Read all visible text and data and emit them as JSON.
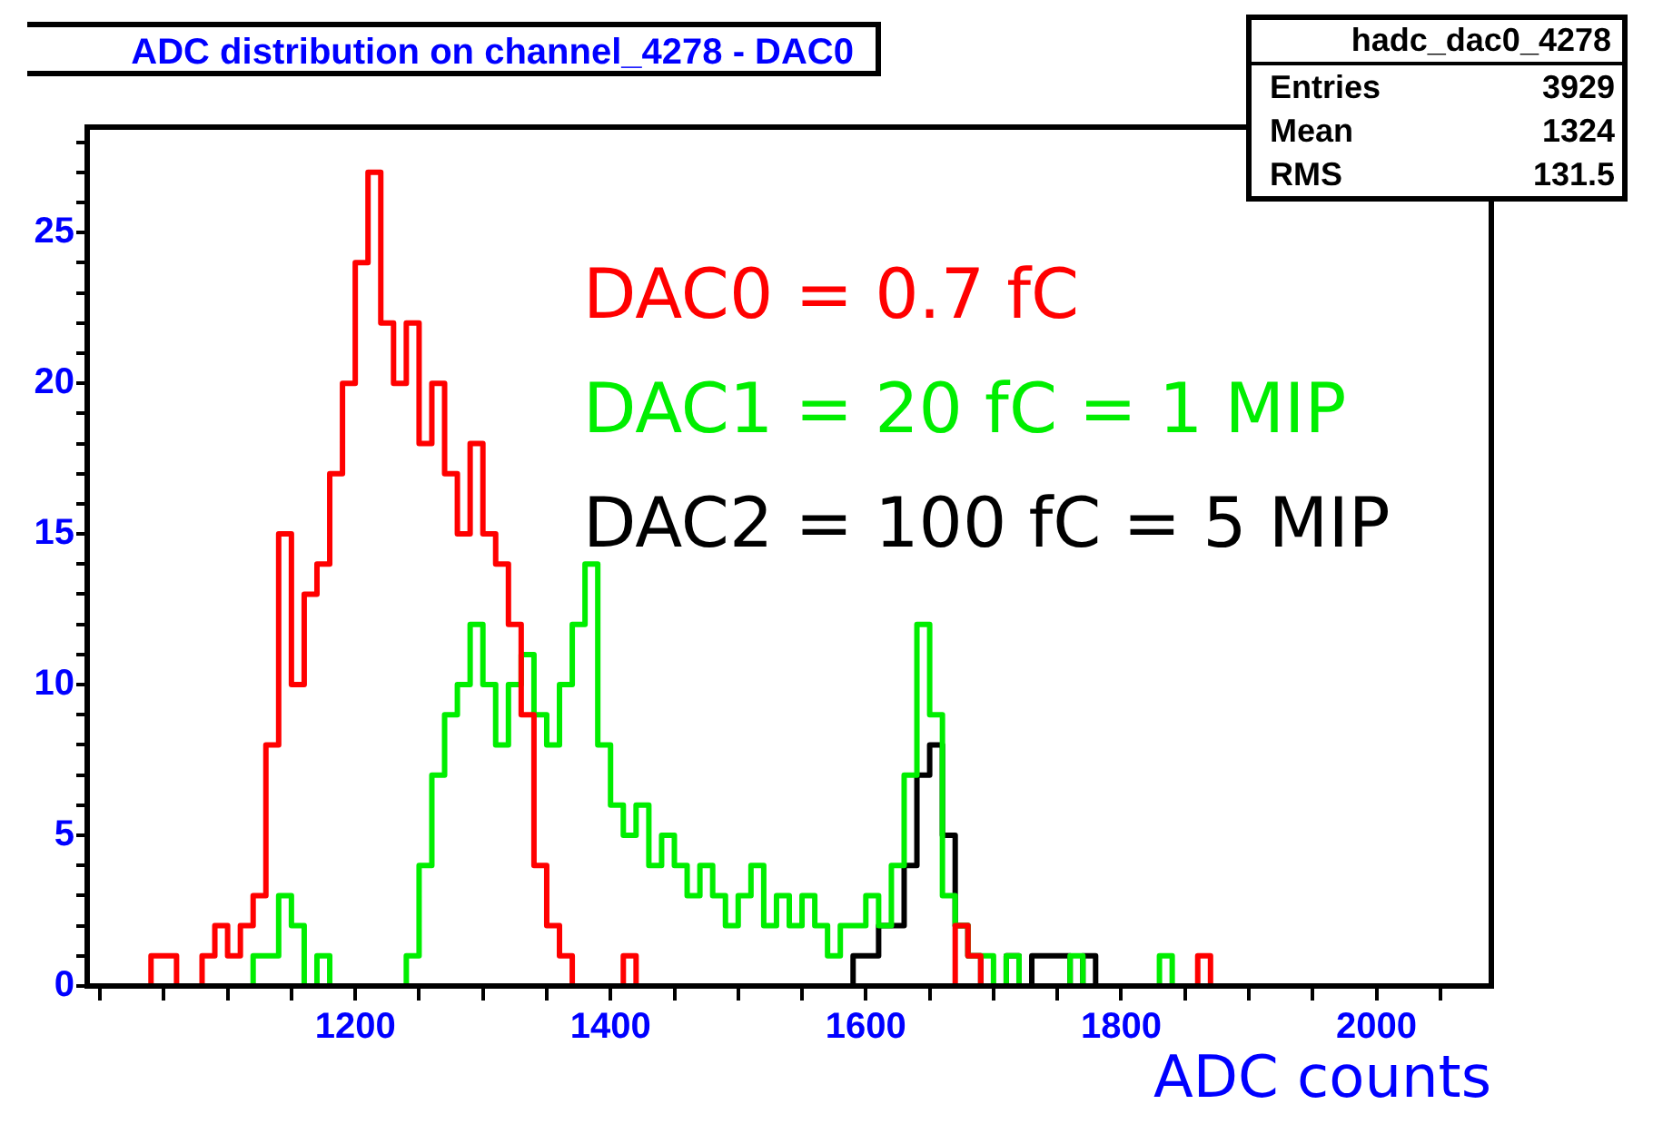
{
  "chart_data": {
    "type": "histogram",
    "title": "ADC distribution on channel_4278 - DAC0",
    "xlabel": "ADC counts",
    "annotations": [
      "hadc_dac0_4278",
      "Entries",
      "3929",
      "Mean",
      "1324",
      "RMS",
      "131.5"
    ],
    "bins": [
      1030,
      1040,
      1050,
      1060,
      1070,
      1080,
      1090,
      1100,
      1110,
      1120,
      1130,
      1140,
      1150,
      1160,
      1170,
      1180,
      1190,
      1200,
      1210,
      1220,
      1230,
      1240,
      1250,
      1260,
      1270,
      1280,
      1290,
      1300,
      1310,
      1320,
      1330,
      1340,
      1350,
      1360,
      1370,
      1380,
      1390,
      1400,
      1410,
      1420,
      1430,
      1440,
      1450,
      1460,
      1470,
      1480,
      1490,
      1500,
      1510,
      1520,
      1530,
      1540,
      1550,
      1560,
      1570,
      1580,
      1590,
      1600,
      1610,
      1620,
      1630,
      1640,
      1650,
      1660,
      1670,
      1680,
      1690,
      1700,
      1710,
      1720,
      1730,
      1740,
      1750,
      1760,
      1770,
      1780,
      1790,
      1800,
      1810,
      1820,
      1830,
      1840,
      1850,
      1860,
      1870,
      1880,
      1890,
      1900
    ],
    "series": [
      {
        "name": "DAC0 = 0.7 fC",
        "color": "#ff0000",
        "values": [
          0,
          1,
          1,
          0,
          0,
          1,
          2,
          1,
          2,
          3,
          8,
          15,
          10,
          13,
          14,
          17,
          20,
          24,
          27,
          22,
          20,
          22,
          18,
          20,
          17,
          15,
          18,
          15,
          14,
          12,
          9,
          4,
          2,
          1,
          0,
          0,
          0,
          0,
          1,
          0,
          0,
          0,
          0,
          0,
          0,
          0,
          0,
          0,
          0,
          0,
          0,
          0,
          0,
          0,
          0,
          0,
          0,
          0,
          0,
          0,
          0,
          0,
          0,
          0,
          2,
          1,
          0,
          0,
          0,
          0,
          0,
          0,
          0,
          0,
          0,
          0,
          0,
          0,
          0,
          0,
          0,
          0,
          0,
          1,
          0,
          0,
          0
        ]
      },
      {
        "name": "DAC1 = 20 fC = 1 MIP",
        "color": "#00ee00",
        "values": [
          0,
          0,
          0,
          0,
          0,
          0,
          0,
          0,
          0,
          1,
          1,
          3,
          2,
          0,
          1,
          0,
          0,
          0,
          0,
          0,
          0,
          1,
          4,
          7,
          9,
          10,
          12,
          10,
          8,
          10,
          11,
          9,
          8,
          10,
          12,
          14,
          8,
          6,
          5,
          6,
          4,
          5,
          4,
          3,
          4,
          3,
          2,
          3,
          4,
          2,
          3,
          2,
          3,
          2,
          1,
          2,
          2,
          3,
          2,
          4,
          7,
          12,
          9,
          3,
          2,
          1,
          1,
          0,
          1,
          0,
          0,
          0,
          0,
          1,
          0,
          0,
          0,
          0,
          0,
          0,
          1,
          0,
          0,
          0,
          0,
          0,
          0
        ]
      },
      {
        "name": "DAC2 = 100 fC = 5 MIP",
        "color": "#000000",
        "values": [
          0,
          0,
          0,
          0,
          0,
          0,
          0,
          0,
          0,
          0,
          0,
          0,
          0,
          0,
          0,
          0,
          0,
          0,
          0,
          0,
          0,
          0,
          0,
          0,
          0,
          0,
          0,
          0,
          0,
          0,
          0,
          0,
          0,
          0,
          0,
          0,
          0,
          0,
          0,
          0,
          0,
          0,
          0,
          0,
          0,
          0,
          0,
          0,
          0,
          0,
          0,
          0,
          0,
          0,
          0,
          0,
          1,
          1,
          2,
          2,
          4,
          7,
          8,
          5,
          2,
          1,
          0,
          0,
          1,
          0,
          1,
          1,
          1,
          0,
          1,
          0,
          0,
          0,
          0,
          0,
          0,
          0,
          0,
          0,
          0,
          0,
          0
        ]
      }
    ],
    "xlim": [
      990,
      2090
    ],
    "xticks": [
      {
        "value": 1000,
        "label": null
      },
      {
        "value": 1050,
        "label": null
      },
      {
        "value": 1100,
        "label": null
      },
      {
        "value": 1150,
        "label": null
      },
      1200,
      {
        "value": 1250,
        "label": null
      },
      {
        "value": 1300,
        "label": null
      },
      {
        "value": 1350,
        "label": null
      },
      1400,
      {
        "value": 1450,
        "label": null
      },
      {
        "value": 1500,
        "label": null
      },
      {
        "value": 1550,
        "label": null
      },
      1600,
      {
        "value": 1650,
        "label": null
      },
      {
        "value": 1700,
        "label": null
      },
      {
        "value": 1750,
        "label": null
      },
      1800,
      {
        "value": 1850,
        "label": null
      },
      {
        "value": 1900,
        "label": null
      },
      {
        "value": 1950,
        "label": null
      },
      2000,
      {
        "value": 2050,
        "label": null
      }
    ],
    "ylim": [
      0,
      28.5
    ],
    "yticks": [
      0,
      {
        "value": 1,
        "label": null
      },
      {
        "value": 2,
        "label": null
      },
      {
        "value": 3,
        "label": null
      },
      {
        "value": 4,
        "label": null
      },
      5,
      {
        "value": 6,
        "label": null
      },
      {
        "value": 7,
        "label": null
      },
      {
        "value": 8,
        "label": null
      },
      {
        "value": 9,
        "label": null
      },
      10,
      {
        "value": 11,
        "label": null
      },
      {
        "value": 12,
        "label": null
      },
      {
        "value": 13,
        "label": null
      },
      {
        "value": 14,
        "label": null
      },
      15,
      {
        "value": 16,
        "label": null
      },
      {
        "value": 17,
        "label": null
      },
      {
        "value": 18,
        "label": null
      },
      {
        "value": 19,
        "label": null
      },
      20,
      {
        "value": 21,
        "label": null
      },
      {
        "value": 22,
        "label": null
      },
      {
        "value": 23,
        "label": null
      },
      {
        "value": 24,
        "label": null
      },
      25,
      {
        "value": 26,
        "label": null
      },
      {
        "value": 27,
        "label": null
      },
      {
        "value": 28,
        "label": null
      }
    ],
    "grid": false,
    "legend": "top right"
  }
}
